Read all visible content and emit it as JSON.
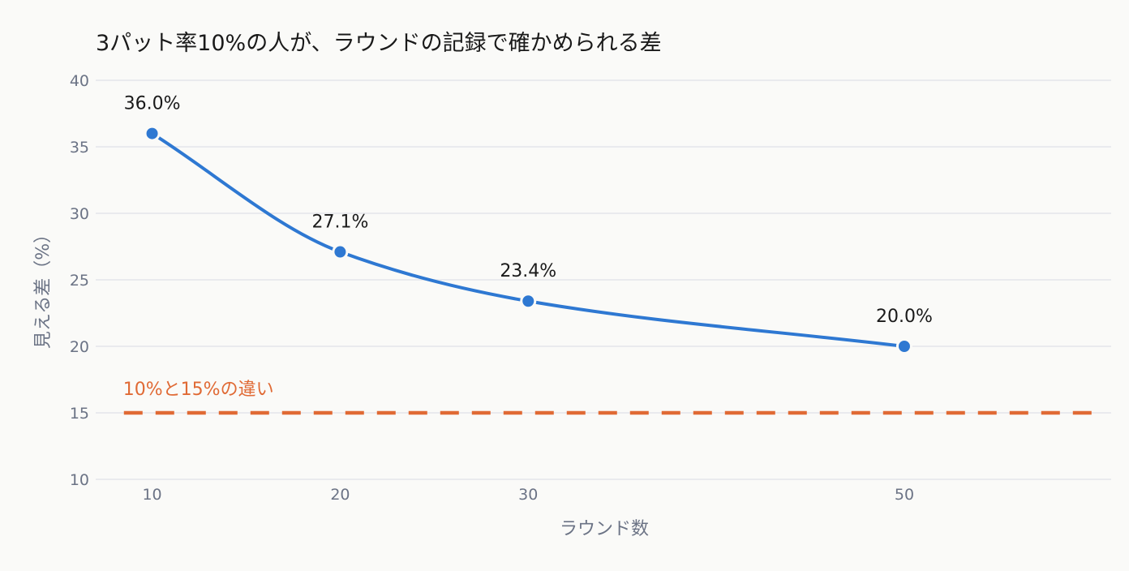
{
  "chart_data": {
    "type": "line",
    "title": "3パット率10%の人が、ラウンドの記録で確かめられる差",
    "xlabel": "ラウンド数",
    "ylabel": "見える差（%）",
    "x": [
      10,
      20,
      30,
      50
    ],
    "x_ticks": [
      "10",
      "20",
      "30",
      "50"
    ],
    "y_ticks": [
      "10",
      "15",
      "20",
      "25",
      "30",
      "35",
      "40"
    ],
    "ylim": [
      10,
      40
    ],
    "xlim": [
      7,
      61
    ],
    "grid": true,
    "series": [
      {
        "values": [
          36.0,
          27.1,
          23.4,
          20.0
        ],
        "labels": [
          "36.0%",
          "27.1%",
          "23.4%",
          "20.0%"
        ],
        "color": "#2e78d2"
      }
    ],
    "reference_line": {
      "y": 15,
      "label": "10%と15%の違い",
      "color": "#e06a35",
      "style": "dashed",
      "x_range": [
        8.5,
        60
      ]
    }
  }
}
